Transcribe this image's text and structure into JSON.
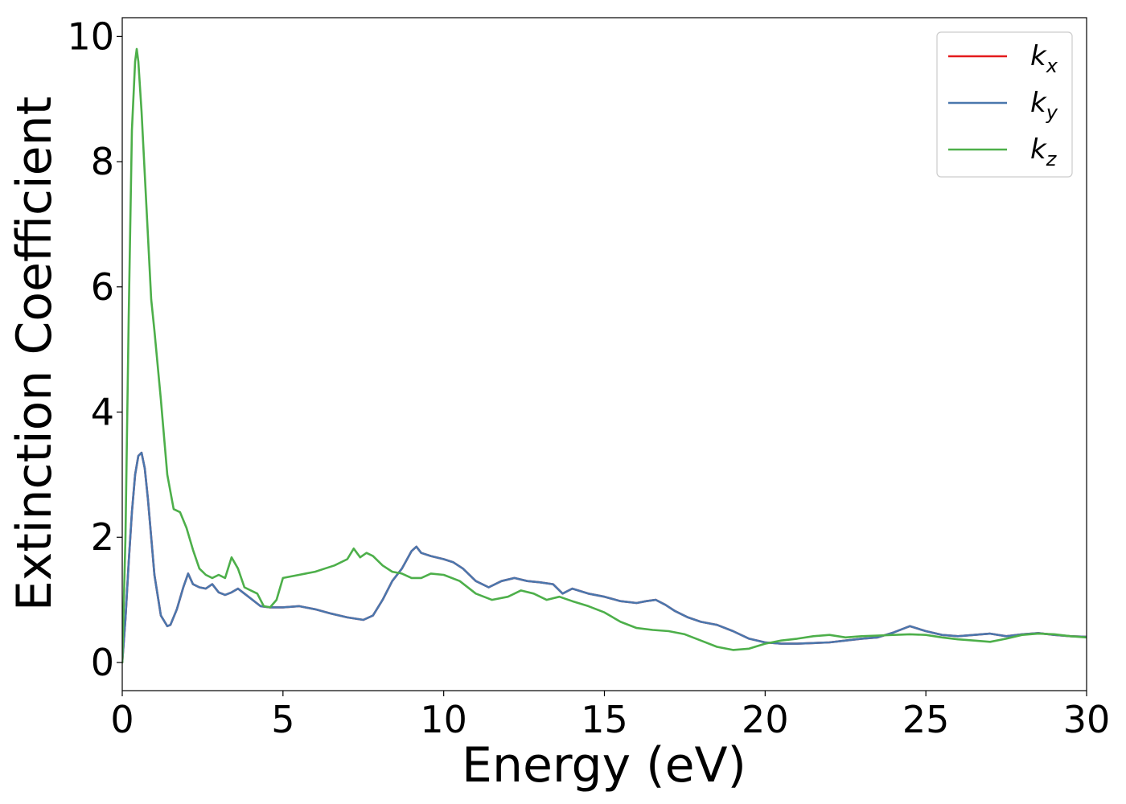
{
  "chart_data": {
    "type": "line",
    "xlabel": "Energy (eV)",
    "ylabel": "Extinction Coefficient",
    "xlim": [
      0,
      30
    ],
    "ylim": [
      -0.45,
      10.3
    ],
    "xticks": [
      0,
      5,
      10,
      15,
      20,
      25,
      30
    ],
    "yticks": [
      0,
      2,
      4,
      6,
      8,
      10
    ],
    "grid": false,
    "legend_position": "top-right",
    "series": [
      {
        "name": "k_x",
        "legend_base": "k",
        "legend_sub": "x",
        "color": "#e41a1c",
        "x": [
          0,
          0.1,
          0.2,
          0.3,
          0.4,
          0.5,
          0.6,
          0.7,
          0.8,
          0.9,
          1.0,
          1.2,
          1.4,
          1.5,
          1.7,
          1.9,
          2.05,
          2.2,
          2.4,
          2.6,
          2.8,
          3.0,
          3.2,
          3.4,
          3.6,
          3.8,
          4.0,
          4.3,
          4.6,
          5.0,
          5.5,
          6.0,
          6.5,
          7.0,
          7.5,
          7.8,
          8.1,
          8.4,
          8.7,
          9.0,
          9.15,
          9.3,
          9.6,
          10.0,
          10.3,
          10.6,
          11.0,
          11.4,
          11.8,
          12.2,
          12.6,
          13.0,
          13.4,
          13.7,
          14.0,
          14.5,
          15.0,
          15.5,
          16.0,
          16.3,
          16.6,
          16.9,
          17.2,
          17.6,
          18.0,
          18.5,
          19.0,
          19.5,
          20.0,
          20.5,
          21.0,
          21.5,
          22.0,
          22.5,
          23.0,
          23.5,
          24.0,
          24.5,
          25.0,
          25.5,
          26.0,
          26.5,
          27.0,
          27.5,
          28.0,
          28.5,
          29.0,
          29.5,
          30.0
        ],
        "y": [
          0.0,
          0.7,
          1.6,
          2.4,
          3.0,
          3.3,
          3.35,
          3.1,
          2.6,
          2.0,
          1.4,
          0.75,
          0.58,
          0.6,
          0.85,
          1.2,
          1.42,
          1.25,
          1.2,
          1.18,
          1.25,
          1.12,
          1.08,
          1.12,
          1.18,
          1.1,
          1.02,
          0.9,
          0.88,
          0.88,
          0.9,
          0.85,
          0.78,
          0.72,
          0.68,
          0.75,
          1.0,
          1.3,
          1.5,
          1.78,
          1.85,
          1.75,
          1.7,
          1.65,
          1.6,
          1.5,
          1.3,
          1.2,
          1.3,
          1.35,
          1.3,
          1.28,
          1.25,
          1.1,
          1.18,
          1.1,
          1.05,
          0.98,
          0.95,
          0.98,
          1.0,
          0.92,
          0.82,
          0.72,
          0.65,
          0.6,
          0.5,
          0.38,
          0.32,
          0.3,
          0.3,
          0.31,
          0.32,
          0.35,
          0.38,
          0.4,
          0.48,
          0.58,
          0.5,
          0.44,
          0.42,
          0.44,
          0.46,
          0.42,
          0.45,
          0.47,
          0.44,
          0.42,
          0.41
        ]
      },
      {
        "name": "k_y",
        "legend_base": "k",
        "legend_sub": "y",
        "color": "#4a77ad",
        "x": [
          0,
          0.1,
          0.2,
          0.3,
          0.4,
          0.5,
          0.6,
          0.7,
          0.8,
          0.9,
          1.0,
          1.2,
          1.4,
          1.5,
          1.7,
          1.9,
          2.05,
          2.2,
          2.4,
          2.6,
          2.8,
          3.0,
          3.2,
          3.4,
          3.6,
          3.8,
          4.0,
          4.3,
          4.6,
          5.0,
          5.5,
          6.0,
          6.5,
          7.0,
          7.5,
          7.8,
          8.1,
          8.4,
          8.7,
          9.0,
          9.15,
          9.3,
          9.6,
          10.0,
          10.3,
          10.6,
          11.0,
          11.4,
          11.8,
          12.2,
          12.6,
          13.0,
          13.4,
          13.7,
          14.0,
          14.5,
          15.0,
          15.5,
          16.0,
          16.3,
          16.6,
          16.9,
          17.2,
          17.6,
          18.0,
          18.5,
          19.0,
          19.5,
          20.0,
          20.5,
          21.0,
          21.5,
          22.0,
          22.5,
          23.0,
          23.5,
          24.0,
          24.5,
          25.0,
          25.5,
          26.0,
          26.5,
          27.0,
          27.5,
          28.0,
          28.5,
          29.0,
          29.5,
          30.0
        ],
        "y": [
          0.0,
          0.7,
          1.6,
          2.4,
          3.0,
          3.3,
          3.35,
          3.1,
          2.6,
          2.0,
          1.4,
          0.75,
          0.58,
          0.6,
          0.85,
          1.2,
          1.42,
          1.25,
          1.2,
          1.18,
          1.25,
          1.12,
          1.08,
          1.12,
          1.18,
          1.1,
          1.02,
          0.9,
          0.88,
          0.88,
          0.9,
          0.85,
          0.78,
          0.72,
          0.68,
          0.75,
          1.0,
          1.3,
          1.5,
          1.78,
          1.85,
          1.75,
          1.7,
          1.65,
          1.6,
          1.5,
          1.3,
          1.2,
          1.3,
          1.35,
          1.3,
          1.28,
          1.25,
          1.1,
          1.18,
          1.1,
          1.05,
          0.98,
          0.95,
          0.98,
          1.0,
          0.92,
          0.82,
          0.72,
          0.65,
          0.6,
          0.5,
          0.38,
          0.32,
          0.3,
          0.3,
          0.31,
          0.32,
          0.35,
          0.38,
          0.4,
          0.48,
          0.58,
          0.5,
          0.44,
          0.42,
          0.44,
          0.46,
          0.42,
          0.45,
          0.47,
          0.44,
          0.42,
          0.41
        ]
      },
      {
        "name": "k_z",
        "legend_base": "k",
        "legend_sub": "z",
        "color": "#4daf4a",
        "x": [
          0,
          0.1,
          0.2,
          0.3,
          0.4,
          0.45,
          0.5,
          0.6,
          0.7,
          0.8,
          0.9,
          1.0,
          1.2,
          1.4,
          1.6,
          1.8,
          2.0,
          2.2,
          2.4,
          2.6,
          2.8,
          3.0,
          3.2,
          3.4,
          3.6,
          3.8,
          4.0,
          4.2,
          4.4,
          4.6,
          4.8,
          5.0,
          5.5,
          6.0,
          6.3,
          6.6,
          7.0,
          7.2,
          7.4,
          7.6,
          7.8,
          8.1,
          8.4,
          8.7,
          9.0,
          9.3,
          9.6,
          10.0,
          10.5,
          11.0,
          11.5,
          12.0,
          12.4,
          12.8,
          13.2,
          13.6,
          14.0,
          14.5,
          15.0,
          15.5,
          16.0,
          16.5,
          17.0,
          17.5,
          18.0,
          18.5,
          19.0,
          19.5,
          20.0,
          20.5,
          21.0,
          21.5,
          22.0,
          22.5,
          23.0,
          23.5,
          24.0,
          24.5,
          25.0,
          25.5,
          26.0,
          26.5,
          27.0,
          27.5,
          28.0,
          28.5,
          29.0,
          29.5,
          30.0
        ],
        "y": [
          0.0,
          2.0,
          5.5,
          8.5,
          9.6,
          9.8,
          9.6,
          8.8,
          7.8,
          6.8,
          5.8,
          5.3,
          4.2,
          3.0,
          2.45,
          2.4,
          2.15,
          1.8,
          1.5,
          1.4,
          1.35,
          1.4,
          1.35,
          1.68,
          1.5,
          1.2,
          1.15,
          1.1,
          0.9,
          0.88,
          1.0,
          1.35,
          1.4,
          1.45,
          1.5,
          1.55,
          1.65,
          1.82,
          1.68,
          1.75,
          1.7,
          1.55,
          1.45,
          1.42,
          1.35,
          1.35,
          1.42,
          1.4,
          1.3,
          1.1,
          1.0,
          1.05,
          1.15,
          1.1,
          1.0,
          1.05,
          0.98,
          0.9,
          0.8,
          0.65,
          0.55,
          0.52,
          0.5,
          0.45,
          0.35,
          0.25,
          0.2,
          0.22,
          0.3,
          0.35,
          0.38,
          0.42,
          0.44,
          0.4,
          0.42,
          0.43,
          0.44,
          0.45,
          0.44,
          0.4,
          0.37,
          0.35,
          0.33,
          0.38,
          0.44,
          0.46,
          0.45,
          0.42,
          0.4
        ]
      }
    ]
  }
}
